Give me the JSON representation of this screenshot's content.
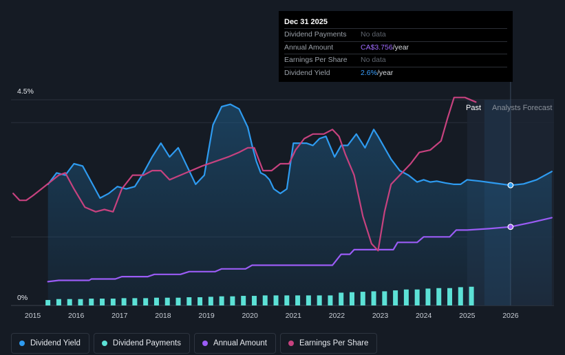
{
  "tooltip": {
    "date": "Dec 31 2025",
    "rows": [
      {
        "label": "Dividend Payments",
        "value": "No data",
        "unit": ""
      },
      {
        "label": "Annual Amount",
        "value": "CA$3.756",
        "unit": "/year"
      },
      {
        "label": "Earnings Per Share",
        "value": "No data",
        "unit": ""
      },
      {
        "label": "Dividend Yield",
        "value": "2.6%",
        "unit": "/year"
      }
    ]
  },
  "legend": [
    {
      "label": "Dividend Yield",
      "color": "#2e9bf0"
    },
    {
      "label": "Dividend Payments",
      "color": "#5ce1d6"
    },
    {
      "label": "Annual Amount",
      "color": "#9b5cf6"
    },
    {
      "label": "Earnings Per Share",
      "color": "#c7427f"
    }
  ],
  "chart_data": {
    "type": "line",
    "y_axis": {
      "top_label": "4.5%",
      "bottom_label": "0%",
      "ylim": [
        0,
        4.5
      ],
      "unit": "%"
    },
    "x_ticks": [
      "2015",
      "2016",
      "2017",
      "2018",
      "2019",
      "2020",
      "2021",
      "2022",
      "2023",
      "2024",
      "2025",
      "2026"
    ],
    "xlim": [
      2014.5,
      2027.0
    ],
    "past_label": "Past",
    "forecast_label": "Analysts Forecast",
    "forecast_start": 2025.0,
    "highlight_x": 2026.0,
    "colors": {
      "yield": "#2e9bf0",
      "payments": "#5ce1d6",
      "annual": "#9b5cf6",
      "eps": "#c7427f"
    },
    "series": [
      {
        "name": "Dividend Yield",
        "key": "yield",
        "x": [
          2015.35,
          2015.55,
          2015.75,
          2015.95,
          2016.15,
          2016.35,
          2016.55,
          2016.75,
          2016.95,
          2017.15,
          2017.35,
          2017.55,
          2017.75,
          2017.95,
          2018.15,
          2018.35,
          2018.55,
          2018.75,
          2018.95,
          2019.15,
          2019.35,
          2019.55,
          2019.75,
          2019.95,
          2020.05,
          2020.15,
          2020.25,
          2020.35,
          2020.45,
          2020.55,
          2020.7,
          2020.85,
          2021.0,
          2021.15,
          2021.3,
          2021.45,
          2021.6,
          2021.75,
          2021.95,
          2022.1,
          2022.25,
          2022.45,
          2022.65,
          2022.85,
          2022.95,
          2023.1,
          2023.25,
          2023.45,
          2023.65,
          2023.85,
          2024.0,
          2024.15,
          2024.3,
          2024.5,
          2024.7,
          2024.85,
          2025.0,
          2025.3,
          2025.6,
          2026.0,
          2026.3,
          2026.6,
          2026.95
        ],
        "y": [
          2.65,
          2.9,
          2.85,
          3.1,
          3.05,
          2.7,
          2.35,
          2.45,
          2.6,
          2.55,
          2.6,
          2.9,
          3.25,
          3.55,
          3.25,
          3.45,
          3.05,
          2.65,
          2.85,
          3.95,
          4.35,
          4.4,
          4.3,
          3.9,
          3.5,
          3.15,
          2.9,
          2.85,
          2.75,
          2.55,
          2.45,
          2.55,
          3.55,
          3.55,
          3.55,
          3.5,
          3.65,
          3.7,
          3.25,
          3.5,
          3.5,
          3.75,
          3.45,
          3.85,
          3.7,
          3.45,
          3.2,
          2.95,
          2.85,
          2.7,
          2.75,
          2.7,
          2.72,
          2.68,
          2.65,
          2.65,
          2.75,
          2.72,
          2.68,
          2.63,
          2.66,
          2.75,
          2.93
        ]
      },
      {
        "name": "Annual Amount",
        "key": "annual",
        "x": [
          2015.35,
          2015.6,
          2016.0,
          2016.3,
          2016.35,
          2016.9,
          2017.05,
          2017.65,
          2017.8,
          2018.4,
          2018.6,
          2019.2,
          2019.35,
          2019.9,
          2020.05,
          2020.9,
          2021.0,
          2021.9,
          2022.1,
          2022.3,
          2022.4,
          2022.6,
          2022.7,
          2023.3,
          2023.4,
          2023.85,
          2024.0,
          2024.6,
          2024.75,
          2025.0,
          2025.5,
          2026.0,
          2026.5,
          2026.95
        ],
        "y": [
          0.52,
          0.55,
          0.55,
          0.55,
          0.58,
          0.58,
          0.63,
          0.63,
          0.68,
          0.68,
          0.74,
          0.74,
          0.8,
          0.8,
          0.88,
          0.88,
          0.88,
          0.88,
          1.12,
          1.12,
          1.22,
          1.22,
          1.22,
          1.22,
          1.38,
          1.38,
          1.5,
          1.5,
          1.65,
          1.65,
          1.68,
          1.72,
          1.82,
          1.92
        ]
      },
      {
        "name": "Earnings Per Share",
        "key": "eps",
        "x": [
          2014.55,
          2014.7,
          2014.85,
          2015.0,
          2015.2,
          2015.4,
          2015.6,
          2015.75,
          2015.95,
          2016.2,
          2016.45,
          2016.65,
          2016.85,
          2017.05,
          2017.3,
          2017.55,
          2017.75,
          2017.95,
          2018.15,
          2018.4,
          2018.65,
          2018.9,
          2019.2,
          2019.5,
          2019.75,
          2019.95,
          2020.1,
          2020.3,
          2020.5,
          2020.7,
          2020.9,
          2021.05,
          2021.25,
          2021.45,
          2021.7,
          2021.9,
          2022.05,
          2022.2,
          2022.4,
          2022.6,
          2022.8,
          2022.95,
          2023.1,
          2023.25,
          2023.45,
          2023.7,
          2023.9,
          2024.15,
          2024.4,
          2024.55,
          2024.7,
          2024.95,
          2025.2
        ],
        "y": [
          2.45,
          2.3,
          2.3,
          2.4,
          2.55,
          2.7,
          2.85,
          2.9,
          2.55,
          2.15,
          2.05,
          2.1,
          2.05,
          2.55,
          2.85,
          2.85,
          2.95,
          2.95,
          2.75,
          2.85,
          2.95,
          3.05,
          3.15,
          3.25,
          3.35,
          3.45,
          3.45,
          2.95,
          2.95,
          3.1,
          3.1,
          3.4,
          3.65,
          3.75,
          3.75,
          3.85,
          3.7,
          3.3,
          2.85,
          1.95,
          1.35,
          1.2,
          2.05,
          2.65,
          2.85,
          3.1,
          3.35,
          3.4,
          3.6,
          4.1,
          4.55,
          4.55,
          4.45
        ]
      }
    ],
    "bars": {
      "name": "Dividend Payments",
      "key": "payments",
      "x": [
        2015.35,
        2015.6,
        2015.85,
        2016.1,
        2016.35,
        2016.6,
        2016.85,
        2017.1,
        2017.35,
        2017.6,
        2017.85,
        2018.1,
        2018.35,
        2018.6,
        2018.85,
        2019.1,
        2019.35,
        2019.6,
        2019.85,
        2020.1,
        2020.35,
        2020.6,
        2020.85,
        2021.1,
        2021.35,
        2021.6,
        2021.85,
        2022.1,
        2022.35,
        2022.6,
        2022.85,
        2023.1,
        2023.35,
        2023.6,
        2023.85,
        2024.1,
        2024.35,
        2024.6,
        2024.85,
        2025.1
      ],
      "values": [
        0.12,
        0.14,
        0.14,
        0.14,
        0.15,
        0.15,
        0.15,
        0.16,
        0.16,
        0.16,
        0.17,
        0.17,
        0.17,
        0.18,
        0.18,
        0.19,
        0.2,
        0.2,
        0.21,
        0.21,
        0.22,
        0.22,
        0.22,
        0.22,
        0.22,
        0.22,
        0.22,
        0.28,
        0.29,
        0.3,
        0.31,
        0.31,
        0.33,
        0.35,
        0.35,
        0.37,
        0.38,
        0.38,
        0.4,
        0.41
      ]
    }
  }
}
